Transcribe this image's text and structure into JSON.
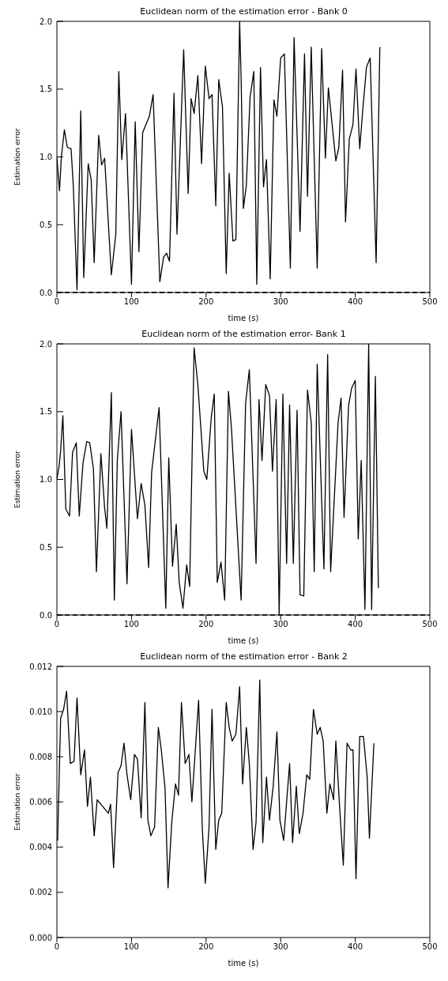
{
  "chart_data": [
    {
      "type": "line",
      "title": "Euclidean norm of the estimation error - Bank 0",
      "xlabel": "time (s)",
      "ylabel": "Estimation error",
      "xlim": [
        0,
        500
      ],
      "xticks": [
        0,
        100,
        200,
        300,
        400,
        500
      ],
      "ylim": [
        0,
        2
      ],
      "yticks": [
        {
          "value": 0,
          "label": "0.0"
        },
        {
          "value": 0.5,
          "label": "0.5"
        },
        {
          "value": 1,
          "label": "1.0"
        },
        {
          "value": 1.5,
          "label": "1.5"
        },
        {
          "value": 2,
          "label": "2.0"
        }
      ],
      "marker": "none",
      "line_style": "solid",
      "grid": false,
      "ref_lines": [
        {
          "axis": "y",
          "value": 0,
          "line_style": "dashed",
          "color": "#000000"
        }
      ],
      "series": [
        {
          "color": "#000000",
          "x": [
            0,
            3.5,
            6,
            10,
            14,
            19,
            22,
            27,
            32,
            36,
            42,
            46,
            50,
            56,
            60,
            64,
            73,
            79,
            83,
            87,
            92,
            100,
            105,
            110,
            115,
            118,
            124,
            129,
            138,
            143,
            147,
            151,
            157,
            161,
            170,
            176,
            180,
            184,
            189,
            194,
            199,
            204,
            208,
            213,
            217,
            222,
            227,
            231,
            236,
            240,
            245,
            247,
            250,
            254,
            259,
            264,
            268,
            273,
            277,
            281,
            286,
            291,
            295,
            300,
            305,
            313,
            318,
            326,
            332,
            336,
            341,
            349,
            355,
            360,
            364,
            374,
            378,
            383,
            387,
            392,
            397,
            401,
            406,
            410,
            415,
            420,
            428,
            433
          ],
          "values": [
            1.0,
            0.75,
            1.0,
            1.2,
            1.07,
            1.06,
            0.79,
            0.02,
            1.34,
            0.11,
            0.95,
            0.83,
            0.22,
            1.16,
            0.94,
            0.99,
            0.13,
            0.43,
            1.63,
            0.98,
            1.32,
            0.06,
            1.26,
            0.3,
            1.18,
            1.22,
            1.3,
            1.46,
            0.08,
            0.26,
            0.29,
            0.23,
            1.47,
            0.43,
            1.79,
            0.73,
            1.43,
            1.32,
            1.6,
            0.95,
            1.67,
            1.43,
            1.46,
            0.64,
            1.57,
            1.37,
            0.14,
            0.88,
            0.38,
            0.39,
            2.0,
            1.58,
            0.62,
            0.79,
            1.44,
            1.63,
            0.06,
            1.66,
            0.78,
            0.98,
            0.1,
            1.42,
            1.3,
            1.73,
            1.76,
            0.18,
            1.88,
            0.45,
            1.76,
            0.71,
            1.81,
            0.18,
            1.8,
            0.99,
            1.51,
            0.97,
            1.07,
            1.64,
            0.52,
            1.13,
            1.24,
            1.65,
            1.06,
            1.34,
            1.66,
            1.73,
            0.22,
            1.81
          ]
        }
      ]
    },
    {
      "type": "line",
      "title": "Euclidean norm of the estimation error- Bank 1",
      "xlabel": "time (s)",
      "ylabel": "Estimation error",
      "xlim": [
        0,
        500
      ],
      "xticks": [
        0,
        100,
        200,
        300,
        400,
        500
      ],
      "ylim": [
        0,
        2
      ],
      "yticks": [
        {
          "value": 0,
          "label": "0.0"
        },
        {
          "value": 0.5,
          "label": "0.5"
        },
        {
          "value": 1,
          "label": "1.0"
        },
        {
          "value": 1.5,
          "label": "1.5"
        },
        {
          "value": 2,
          "label": "2.0"
        }
      ],
      "marker": "none",
      "line_style": "solid",
      "grid": false,
      "ref_lines": [
        {
          "axis": "y",
          "value": 0,
          "line_style": "dashed",
          "color": "#000000"
        }
      ],
      "series": [
        {
          "color": "#000000",
          "x": [
            0,
            3,
            5,
            8,
            12,
            17,
            21,
            26,
            30,
            35,
            40,
            44,
            49,
            53,
            59,
            64,
            67,
            73,
            77,
            81,
            86,
            94,
            100,
            108,
            113,
            118,
            123,
            127,
            137,
            146,
            150,
            155,
            160,
            164,
            169,
            174,
            178,
            184,
            189,
            197,
            201,
            207,
            211,
            215,
            220,
            225,
            230,
            234,
            247,
            253,
            258,
            267,
            271,
            275,
            280,
            285,
            289,
            294,
            298,
            303,
            308,
            312,
            317,
            322,
            326,
            331,
            336,
            341,
            345,
            349,
            358,
            363,
            367,
            377,
            381,
            385,
            391,
            395,
            400,
            404,
            408,
            413,
            418,
            422,
            427,
            431
          ],
          "values": [
            1.0,
            1.1,
            1.21,
            1.47,
            0.78,
            0.73,
            1.2,
            1.27,
            0.73,
            1.12,
            1.28,
            1.27,
            1.08,
            0.32,
            1.19,
            0.79,
            0.64,
            1.64,
            0.11,
            1.14,
            1.5,
            0.23,
            1.37,
            0.71,
            0.97,
            0.81,
            0.35,
            1.05,
            1.53,
            0.05,
            1.16,
            0.36,
            0.67,
            0.24,
            0.05,
            0.37,
            0.21,
            1.97,
            1.7,
            1.06,
            1.0,
            1.46,
            1.63,
            0.24,
            0.39,
            0.11,
            1.65,
            1.38,
            0.11,
            1.56,
            1.81,
            0.38,
            1.59,
            1.14,
            1.7,
            1.62,
            1.06,
            1.59,
            0.0,
            1.63,
            0.38,
            1.55,
            0.38,
            1.51,
            0.15,
            0.14,
            1.66,
            1.42,
            0.32,
            1.85,
            0.34,
            1.92,
            0.32,
            1.42,
            1.6,
            0.72,
            1.54,
            1.67,
            1.73,
            0.56,
            1.14,
            0.04,
            2.0,
            0.04,
            1.76,
            0.2
          ]
        }
      ]
    },
    {
      "type": "line",
      "title": "Euclidean norm of the estimation error - Bank 2",
      "xlabel": "time (s)",
      "ylabel": "Estimation error",
      "xlim": [
        0,
        500
      ],
      "xticks": [
        0,
        100,
        200,
        300,
        400,
        500
      ],
      "ylim": [
        0,
        0.012
      ],
      "yticks": [
        {
          "value": 0,
          "label": "0.000"
        },
        {
          "value": 0.002,
          "label": "0.002"
        },
        {
          "value": 0.004,
          "label": "0.004"
        },
        {
          "value": 0.006,
          "label": "0.006"
        },
        {
          "value": 0.008,
          "label": "0.008"
        },
        {
          "value": 0.01,
          "label": "0.010"
        },
        {
          "value": 0.012,
          "label": "0.012"
        }
      ],
      "marker": "none",
      "line_style": "solid",
      "grid": false,
      "series": [
        {
          "color": "#000000",
          "x": [
            0,
            1,
            5,
            9,
            13,
            18,
            23,
            27,
            32,
            37,
            41,
            45,
            50,
            54,
            69,
            72,
            76,
            82,
            86,
            90,
            94,
            99,
            104,
            108,
            113,
            118,
            122,
            126,
            131,
            136,
            140,
            145,
            149,
            154,
            159,
            163,
            167,
            172,
            177,
            181,
            190,
            195,
            199,
            204,
            208,
            213,
            217,
            221,
            227,
            231,
            235,
            240,
            245,
            249,
            254,
            258,
            263,
            267,
            272,
            276,
            281,
            285,
            290,
            295,
            299,
            304,
            308,
            312,
            316,
            321,
            325,
            330,
            335,
            339,
            344,
            349,
            353,
            357,
            362,
            366,
            371,
            374,
            379,
            384,
            389,
            394,
            397,
            401,
            406,
            411,
            416,
            419,
            425
          ],
          "values": [
            0.0044,
            0.0043,
            0.0097,
            0.0101,
            0.0109,
            0.0077,
            0.0078,
            0.0106,
            0.0072,
            0.0083,
            0.0058,
            0.0071,
            0.0045,
            0.0061,
            0.0055,
            0.0059,
            0.0031,
            0.0073,
            0.0076,
            0.0086,
            0.0072,
            0.0061,
            0.0081,
            0.0079,
            0.0053,
            0.0104,
            0.0052,
            0.0045,
            0.0049,
            0.0093,
            0.0083,
            0.0066,
            0.0022,
            0.0051,
            0.0068,
            0.0063,
            0.0104,
            0.0077,
            0.0081,
            0.006,
            0.0105,
            0.0048,
            0.0024,
            0.0049,
            0.0101,
            0.0039,
            0.0052,
            0.0055,
            0.0104,
            0.0093,
            0.0087,
            0.009,
            0.0111,
            0.0068,
            0.0093,
            0.0077,
            0.0039,
            0.0051,
            0.0114,
            0.0042,
            0.0071,
            0.0052,
            0.0067,
            0.0091,
            0.0052,
            0.0043,
            0.006,
            0.0077,
            0.0042,
            0.0067,
            0.0046,
            0.0055,
            0.0072,
            0.007,
            0.0101,
            0.009,
            0.0093,
            0.0087,
            0.0055,
            0.0068,
            0.0061,
            0.0087,
            0.0058,
            0.0032,
            0.0086,
            0.0083,
            0.0083,
            0.0026,
            0.0089,
            0.0089,
            0.0071,
            0.0044,
            0.0086
          ]
        }
      ]
    }
  ]
}
